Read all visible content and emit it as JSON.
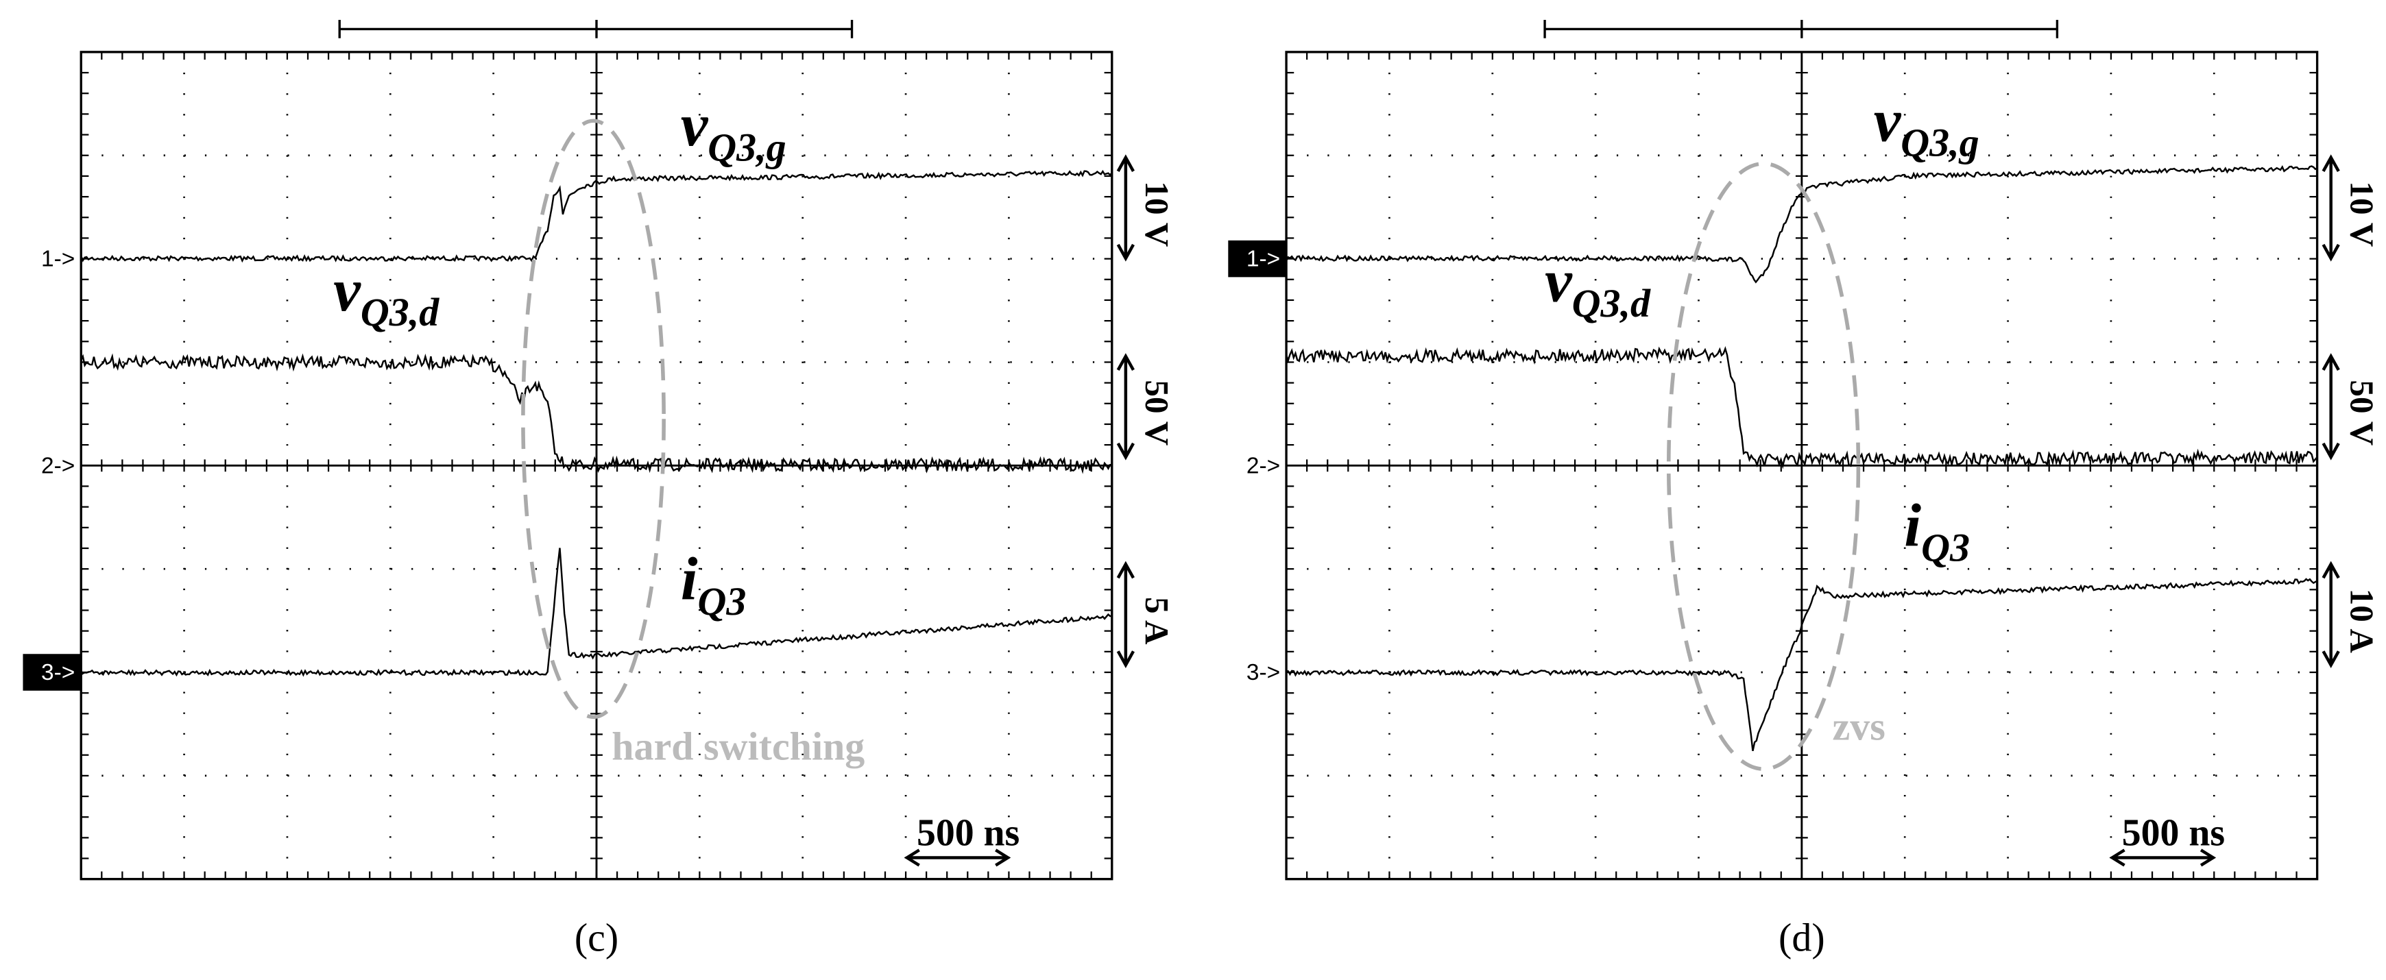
{
  "panels": [
    {
      "caption": "(c)",
      "markers": [
        {
          "label": "1->",
          "highlighted": false
        },
        {
          "label": "2->",
          "highlighted": false
        },
        {
          "label": "3->",
          "highlighted": true
        }
      ],
      "traces": [
        {
          "symbol": "v",
          "subscript": "Q3,g"
        },
        {
          "symbol": "v",
          "subscript": "Q3,d"
        },
        {
          "symbol": "i",
          "subscript": "Q3"
        }
      ],
      "scales": [
        "10 V",
        "50 V",
        "5 A"
      ],
      "annotation": "hard switching",
      "time_scale": "500 ns"
    },
    {
      "caption": "(d)",
      "markers": [
        {
          "label": "1->",
          "highlighted": true
        },
        {
          "label": "2->",
          "highlighted": false
        },
        {
          "label": "3->",
          "highlighted": false
        }
      ],
      "traces": [
        {
          "symbol": "v",
          "subscript": "Q3,g"
        },
        {
          "symbol": "v",
          "subscript": "Q3,d"
        },
        {
          "symbol": "i",
          "subscript": "Q3"
        }
      ],
      "scales": [
        "10 V",
        "50 V",
        "10 A"
      ],
      "annotation": "zvs",
      "time_scale": "500 ns"
    }
  ]
}
